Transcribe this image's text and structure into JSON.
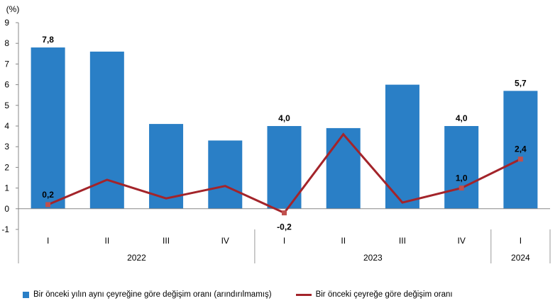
{
  "chart_data": {
    "type": "bar+line",
    "ylabel": "(%)",
    "ylim": [
      -1,
      9
    ],
    "yticks": [
      "-1",
      "0",
      "1",
      "2",
      "3",
      "4",
      "5",
      "6",
      "7",
      "8",
      "9"
    ],
    "categories": [
      "I",
      "II",
      "III",
      "IV",
      "I",
      "II",
      "III",
      "IV",
      "I"
    ],
    "groups": [
      {
        "label": "2022",
        "count": 4
      },
      {
        "label": "2023",
        "count": 4
      },
      {
        "label": "2024",
        "count": 1
      }
    ],
    "series": [
      {
        "name": "Bir önceki yılın aynı çeyreğine göre değişim oranı (arındırılmamış)",
        "type": "bar",
        "color": "#2a7fc6",
        "values": [
          7.8,
          7.6,
          4.1,
          3.3,
          4.0,
          3.9,
          6.0,
          4.0,
          5.7
        ],
        "labels": [
          "7,8",
          null,
          null,
          null,
          "4,0",
          null,
          null,
          "4,0",
          "5,7"
        ]
      },
      {
        "name": "Bir önceki çeyreğe göre değişim oranı",
        "type": "line",
        "color": "#a3242a",
        "values": [
          0.2,
          1.4,
          0.5,
          1.1,
          -0.2,
          3.6,
          0.3,
          1.0,
          2.4
        ],
        "labels": [
          "0,2",
          null,
          null,
          null,
          "-0,2",
          null,
          null,
          "1,0",
          "2,4"
        ]
      }
    ],
    "grid": false,
    "legend_position": "bottom"
  }
}
